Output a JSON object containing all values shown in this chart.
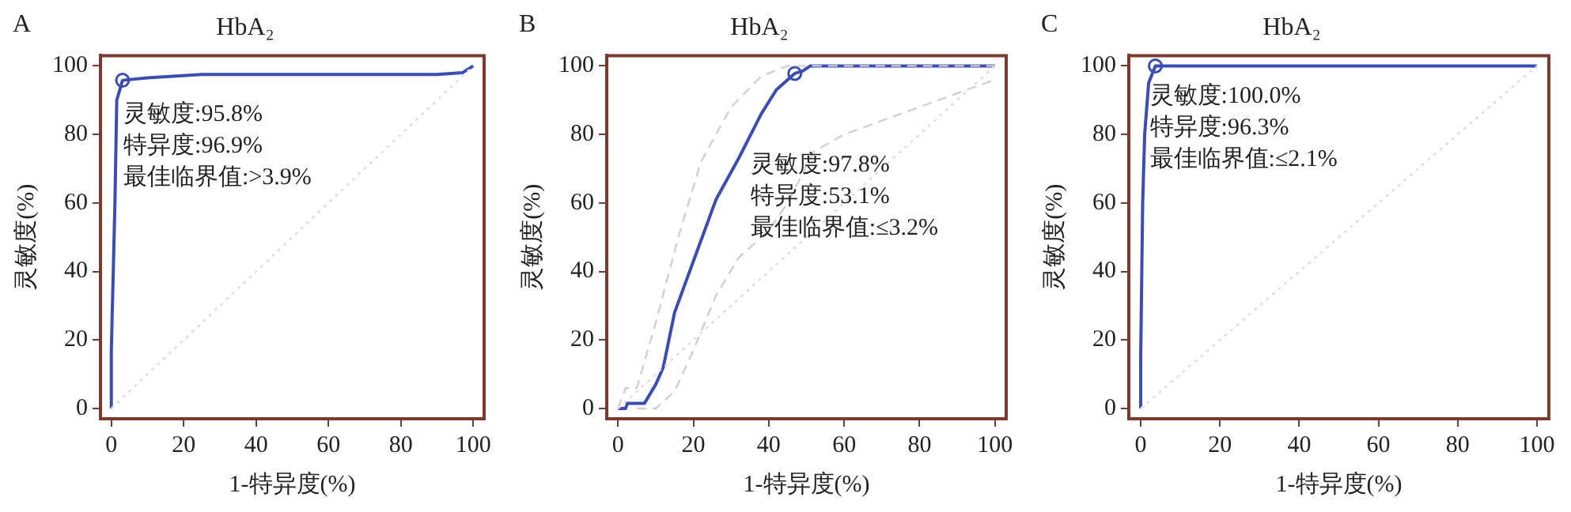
{
  "chart_data": [
    {
      "type": "line",
      "title": "HbA₂",
      "xlabel": "1-特异度(%)",
      "ylabel": "灵敏度(%)",
      "annotations": [
        "A",
        "灵敏度:95.8%",
        "特异度:96.9%",
        "最佳临界值:>3.9%"
      ],
      "xlim": [
        -3,
        103
      ],
      "ylim": [
        -3,
        103
      ],
      "xticks": [
        0,
        20,
        40,
        60,
        80,
        100
      ],
      "yticks": [
        0,
        20,
        40,
        60,
        80,
        100
      ],
      "grid": false,
      "legend": false,
      "series": [
        {
          "type": "line",
          "line_style": "dotted",
          "marker": "none",
          "color": "#dddddd",
          "x": [
            0,
            100
          ],
          "values": [
            0,
            100
          ]
        },
        {
          "type": "line",
          "line_style": "solid",
          "marker": "none",
          "color": "#3b4db3",
          "x": [
            0,
            0,
            1,
            1.5,
            3.1,
            10,
            25,
            90,
            97,
            100
          ],
          "values": [
            0,
            17,
            60,
            90,
            95.8,
            96.5,
            97.5,
            97.5,
            98,
            100
          ]
        },
        {
          "type": "scatter",
          "marker": "circle",
          "color": "#3b4db3",
          "x": [
            3.1
          ],
          "values": [
            95.8
          ]
        }
      ]
    },
    {
      "type": "line",
      "title": "HbA₂",
      "xlabel": "1-特异度(%)",
      "ylabel": "灵敏度(%)",
      "annotations": [
        "B",
        "灵敏度:97.8%",
        "特异度:53.1%",
        "最佳临界值:≤3.2%"
      ],
      "xlim": [
        -3,
        103
      ],
      "ylim": [
        -3,
        103
      ],
      "xticks": [
        0,
        20,
        40,
        60,
        80,
        100
      ],
      "yticks": [
        0,
        20,
        40,
        60,
        80,
        100
      ],
      "grid": false,
      "legend": false,
      "series": [
        {
          "type": "line",
          "line_style": "dotted",
          "marker": "none",
          "color": "#dddddd",
          "x": [
            0,
            100
          ],
          "values": [
            0,
            100
          ]
        },
        {
          "type": "line",
          "line_style": "dashed",
          "marker": "none",
          "color": "#d0d0d0",
          "x": [
            0,
            2,
            5,
            10,
            16,
            22,
            30,
            38,
            45,
            100
          ],
          "values": [
            0,
            6,
            6,
            25,
            50,
            72,
            88,
            97,
            100,
            100
          ]
        },
        {
          "type": "line",
          "line_style": "dashed",
          "marker": "none",
          "color": "#d0d0d0",
          "x": [
            5,
            10,
            15,
            20,
            26,
            32,
            40,
            45,
            52,
            60,
            100
          ],
          "values": [
            0,
            0,
            5,
            17,
            33,
            44,
            52,
            60,
            75,
            80,
            96
          ]
        },
        {
          "type": "line",
          "line_style": "solid",
          "marker": "none",
          "color": "#3b4db3",
          "x": [
            0,
            2,
            2.5,
            7,
            10,
            12,
            15,
            20,
            26,
            32,
            38,
            42,
            46.9,
            49,
            51,
            100
          ],
          "values": [
            0,
            0,
            1.5,
            1.5,
            7,
            12,
            28,
            43,
            61,
            73,
            86,
            93,
            97.8,
            98.5,
            100,
            100
          ]
        },
        {
          "type": "scatter",
          "marker": "circle",
          "color": "#3b4db3",
          "x": [
            46.9
          ],
          "values": [
            97.8
          ]
        }
      ]
    },
    {
      "type": "line",
      "title": "HbA₂",
      "xlabel": "1-特异度(%)",
      "ylabel": "灵敏度(%)",
      "annotations": [
        "C",
        "灵敏度:100.0%",
        "特异度:96.3%",
        "最佳临界值:≤2.1%"
      ],
      "xlim": [
        -3,
        103
      ],
      "ylim": [
        -3,
        103
      ],
      "xticks": [
        0,
        20,
        40,
        60,
        80,
        100
      ],
      "yticks": [
        0,
        20,
        40,
        60,
        80,
        100
      ],
      "grid": false,
      "legend": false,
      "series": [
        {
          "type": "line",
          "line_style": "dotted",
          "marker": "none",
          "color": "#dddddd",
          "x": [
            0,
            100
          ],
          "values": [
            0,
            100
          ]
        },
        {
          "type": "line",
          "line_style": "solid",
          "marker": "none",
          "color": "#3b4db3",
          "x": [
            0,
            0,
            0.5,
            1,
            2,
            3.7,
            100
          ],
          "values": [
            0,
            15,
            60,
            80,
            95,
            100,
            100
          ]
        },
        {
          "type": "scatter",
          "marker": "circle",
          "color": "#3b4db3",
          "x": [
            3.7
          ],
          "values": [
            100
          ]
        }
      ]
    }
  ]
}
